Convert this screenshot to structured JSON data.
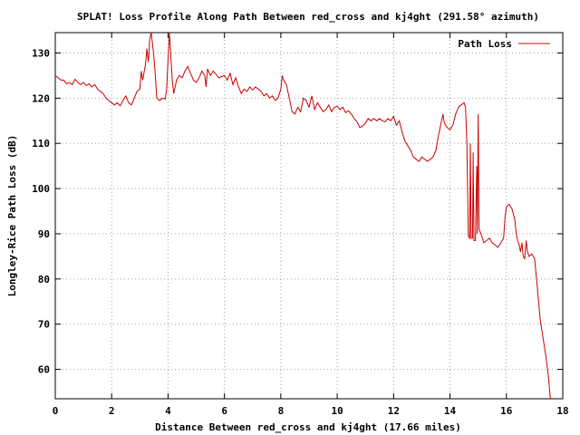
{
  "chart_data": {
    "type": "line",
    "title": "SPLAT! Loss Profile Along Path Between red_cross and kj4ght (291.58° azimuth)",
    "xlabel": "Distance Between red_cross and kj4ght (17.66 miles)",
    "ylabel": "Longley-Rice Path Loss (dB)",
    "xlim": [
      0,
      18
    ],
    "ylim": [
      53.5,
      134.5
    ],
    "x_ticks": [
      0,
      2,
      4,
      6,
      8,
      10,
      12,
      14,
      16,
      18
    ],
    "y_ticks": [
      60,
      70,
      80,
      90,
      100,
      110,
      120,
      130
    ],
    "grid": true,
    "legend_position": "top-right",
    "series": [
      {
        "name": "Path Loss",
        "color": "#cc0000",
        "points": [
          [
            0.0,
            125
          ],
          [
            0.1,
            124.5
          ],
          [
            0.2,
            124
          ],
          [
            0.3,
            124
          ],
          [
            0.4,
            123.2
          ],
          [
            0.5,
            123.5
          ],
          [
            0.6,
            123
          ],
          [
            0.7,
            124.2
          ],
          [
            0.8,
            123.5
          ],
          [
            0.9,
            123
          ],
          [
            1.0,
            123.5
          ],
          [
            1.1,
            122.8
          ],
          [
            1.2,
            123.2
          ],
          [
            1.3,
            122.5
          ],
          [
            1.4,
            123
          ],
          [
            1.5,
            122
          ],
          [
            1.6,
            121.5
          ],
          [
            1.7,
            121
          ],
          [
            1.8,
            120
          ],
          [
            1.9,
            119.5
          ],
          [
            2.0,
            119
          ],
          [
            2.1,
            118.5
          ],
          [
            2.2,
            119
          ],
          [
            2.3,
            118.3
          ],
          [
            2.4,
            119.5
          ],
          [
            2.5,
            120.5
          ],
          [
            2.6,
            119
          ],
          [
            2.7,
            118.5
          ],
          [
            2.8,
            120
          ],
          [
            2.9,
            121.5
          ],
          [
            3.0,
            122
          ],
          [
            3.05,
            126
          ],
          [
            3.1,
            124
          ],
          [
            3.2,
            127.5
          ],
          [
            3.25,
            131
          ],
          [
            3.3,
            128
          ],
          [
            3.35,
            133
          ],
          [
            3.4,
            134.5
          ],
          [
            3.45,
            132
          ],
          [
            3.5,
            129
          ],
          [
            3.55,
            125
          ],
          [
            3.6,
            120
          ],
          [
            3.7,
            119.5
          ],
          [
            3.8,
            120
          ],
          [
            3.9,
            119.8
          ],
          [
            3.95,
            122
          ],
          [
            4.0,
            128.5
          ],
          [
            4.05,
            134.5
          ],
          [
            4.1,
            129
          ],
          [
            4.15,
            124
          ],
          [
            4.2,
            121
          ],
          [
            4.3,
            124
          ],
          [
            4.4,
            125
          ],
          [
            4.5,
            124.5
          ],
          [
            4.6,
            126
          ],
          [
            4.7,
            127
          ],
          [
            4.8,
            125.5
          ],
          [
            4.9,
            124
          ],
          [
            5.0,
            123.5
          ],
          [
            5.1,
            124.5
          ],
          [
            5.2,
            126
          ],
          [
            5.3,
            125
          ],
          [
            5.35,
            122.5
          ],
          [
            5.4,
            126.5
          ],
          [
            5.5,
            125
          ],
          [
            5.6,
            126
          ],
          [
            5.7,
            125.3
          ],
          [
            5.8,
            124.5
          ],
          [
            5.9,
            124.8
          ],
          [
            6.0,
            125
          ],
          [
            6.1,
            124
          ],
          [
            6.2,
            125.5
          ],
          [
            6.3,
            123
          ],
          [
            6.4,
            124.5
          ],
          [
            6.5,
            122.5
          ],
          [
            6.6,
            121
          ],
          [
            6.7,
            122
          ],
          [
            6.8,
            121.5
          ],
          [
            6.9,
            122.5
          ],
          [
            7.0,
            121.8
          ],
          [
            7.1,
            122.5
          ],
          [
            7.2,
            122
          ],
          [
            7.3,
            121.5
          ],
          [
            7.4,
            120.5
          ],
          [
            7.5,
            121
          ],
          [
            7.6,
            120
          ],
          [
            7.7,
            120.5
          ],
          [
            7.8,
            119.5
          ],
          [
            7.9,
            120
          ],
          [
            8.0,
            122
          ],
          [
            8.05,
            125
          ],
          [
            8.1,
            124
          ],
          [
            8.2,
            123
          ],
          [
            8.3,
            120
          ],
          [
            8.4,
            117
          ],
          [
            8.5,
            116.5
          ],
          [
            8.6,
            118
          ],
          [
            8.7,
            117
          ],
          [
            8.8,
            120
          ],
          [
            8.9,
            119.5
          ],
          [
            9.0,
            118
          ],
          [
            9.1,
            120.5
          ],
          [
            9.2,
            117.5
          ],
          [
            9.3,
            119
          ],
          [
            9.4,
            118
          ],
          [
            9.5,
            117
          ],
          [
            9.6,
            117.5
          ],
          [
            9.7,
            118.5
          ],
          [
            9.8,
            117
          ],
          [
            9.9,
            118
          ],
          [
            10.0,
            118.2
          ],
          [
            10.1,
            117.5
          ],
          [
            10.2,
            118
          ],
          [
            10.3,
            116.8
          ],
          [
            10.4,
            117.2
          ],
          [
            10.5,
            116.5
          ],
          [
            10.6,
            115.5
          ],
          [
            10.7,
            114.8
          ],
          [
            10.8,
            113.5
          ],
          [
            10.9,
            113.8
          ],
          [
            11.0,
            114.5
          ],
          [
            11.1,
            115.5
          ],
          [
            11.2,
            115
          ],
          [
            11.3,
            115.5
          ],
          [
            11.4,
            115
          ],
          [
            11.5,
            115.5
          ],
          [
            11.6,
            115
          ],
          [
            11.7,
            114.8
          ],
          [
            11.8,
            115.5
          ],
          [
            11.9,
            115
          ],
          [
            12.0,
            116
          ],
          [
            12.1,
            114
          ],
          [
            12.2,
            115
          ],
          [
            12.3,
            112.5
          ],
          [
            12.4,
            110.5
          ],
          [
            12.5,
            109.5
          ],
          [
            12.6,
            108.5
          ],
          [
            12.7,
            107
          ],
          [
            12.8,
            106.5
          ],
          [
            12.9,
            106
          ],
          [
            13.0,
            107
          ],
          [
            13.1,
            106.5
          ],
          [
            13.2,
            106
          ],
          [
            13.3,
            106.5
          ],
          [
            13.4,
            107
          ],
          [
            13.5,
            108.5
          ],
          [
            13.6,
            112
          ],
          [
            13.7,
            115
          ],
          [
            13.75,
            116.5
          ],
          [
            13.8,
            114.5
          ],
          [
            13.9,
            113.5
          ],
          [
            14.0,
            113
          ],
          [
            14.1,
            114
          ],
          [
            14.2,
            116.5
          ],
          [
            14.3,
            118
          ],
          [
            14.4,
            118.5
          ],
          [
            14.5,
            119
          ],
          [
            14.55,
            118
          ],
          [
            14.6,
            110
          ],
          [
            14.65,
            89.5
          ],
          [
            14.7,
            89
          ],
          [
            14.72,
            110
          ],
          [
            14.75,
            89
          ],
          [
            14.8,
            89
          ],
          [
            14.82,
            108
          ],
          [
            14.85,
            88.5
          ],
          [
            14.9,
            88.5
          ],
          [
            14.95,
            105
          ],
          [
            14.97,
            90
          ],
          [
            15.0,
            116.5
          ],
          [
            15.03,
            91
          ],
          [
            15.1,
            90
          ],
          [
            15.2,
            88
          ],
          [
            15.3,
            88.5
          ],
          [
            15.4,
            89
          ],
          [
            15.5,
            88
          ],
          [
            15.6,
            87.5
          ],
          [
            15.7,
            87
          ],
          [
            15.8,
            88
          ],
          [
            15.9,
            89
          ],
          [
            15.95,
            93.5
          ],
          [
            16.0,
            96
          ],
          [
            16.1,
            96.5
          ],
          [
            16.2,
            95.5
          ],
          [
            16.3,
            93
          ],
          [
            16.35,
            90
          ],
          [
            16.4,
            88.5
          ],
          [
            16.45,
            87.5
          ],
          [
            16.5,
            86
          ],
          [
            16.55,
            88
          ],
          [
            16.6,
            85
          ],
          [
            16.65,
            84.5
          ],
          [
            16.7,
            88.5
          ],
          [
            16.75,
            86
          ],
          [
            16.8,
            85
          ],
          [
            16.9,
            85.5
          ],
          [
            17.0,
            84.5
          ],
          [
            17.1,
            78
          ],
          [
            17.2,
            71
          ],
          [
            17.3,
            67
          ],
          [
            17.4,
            63
          ],
          [
            17.5,
            58
          ],
          [
            17.55,
            54
          ],
          [
            17.58,
            53.5
          ]
        ]
      }
    ]
  }
}
